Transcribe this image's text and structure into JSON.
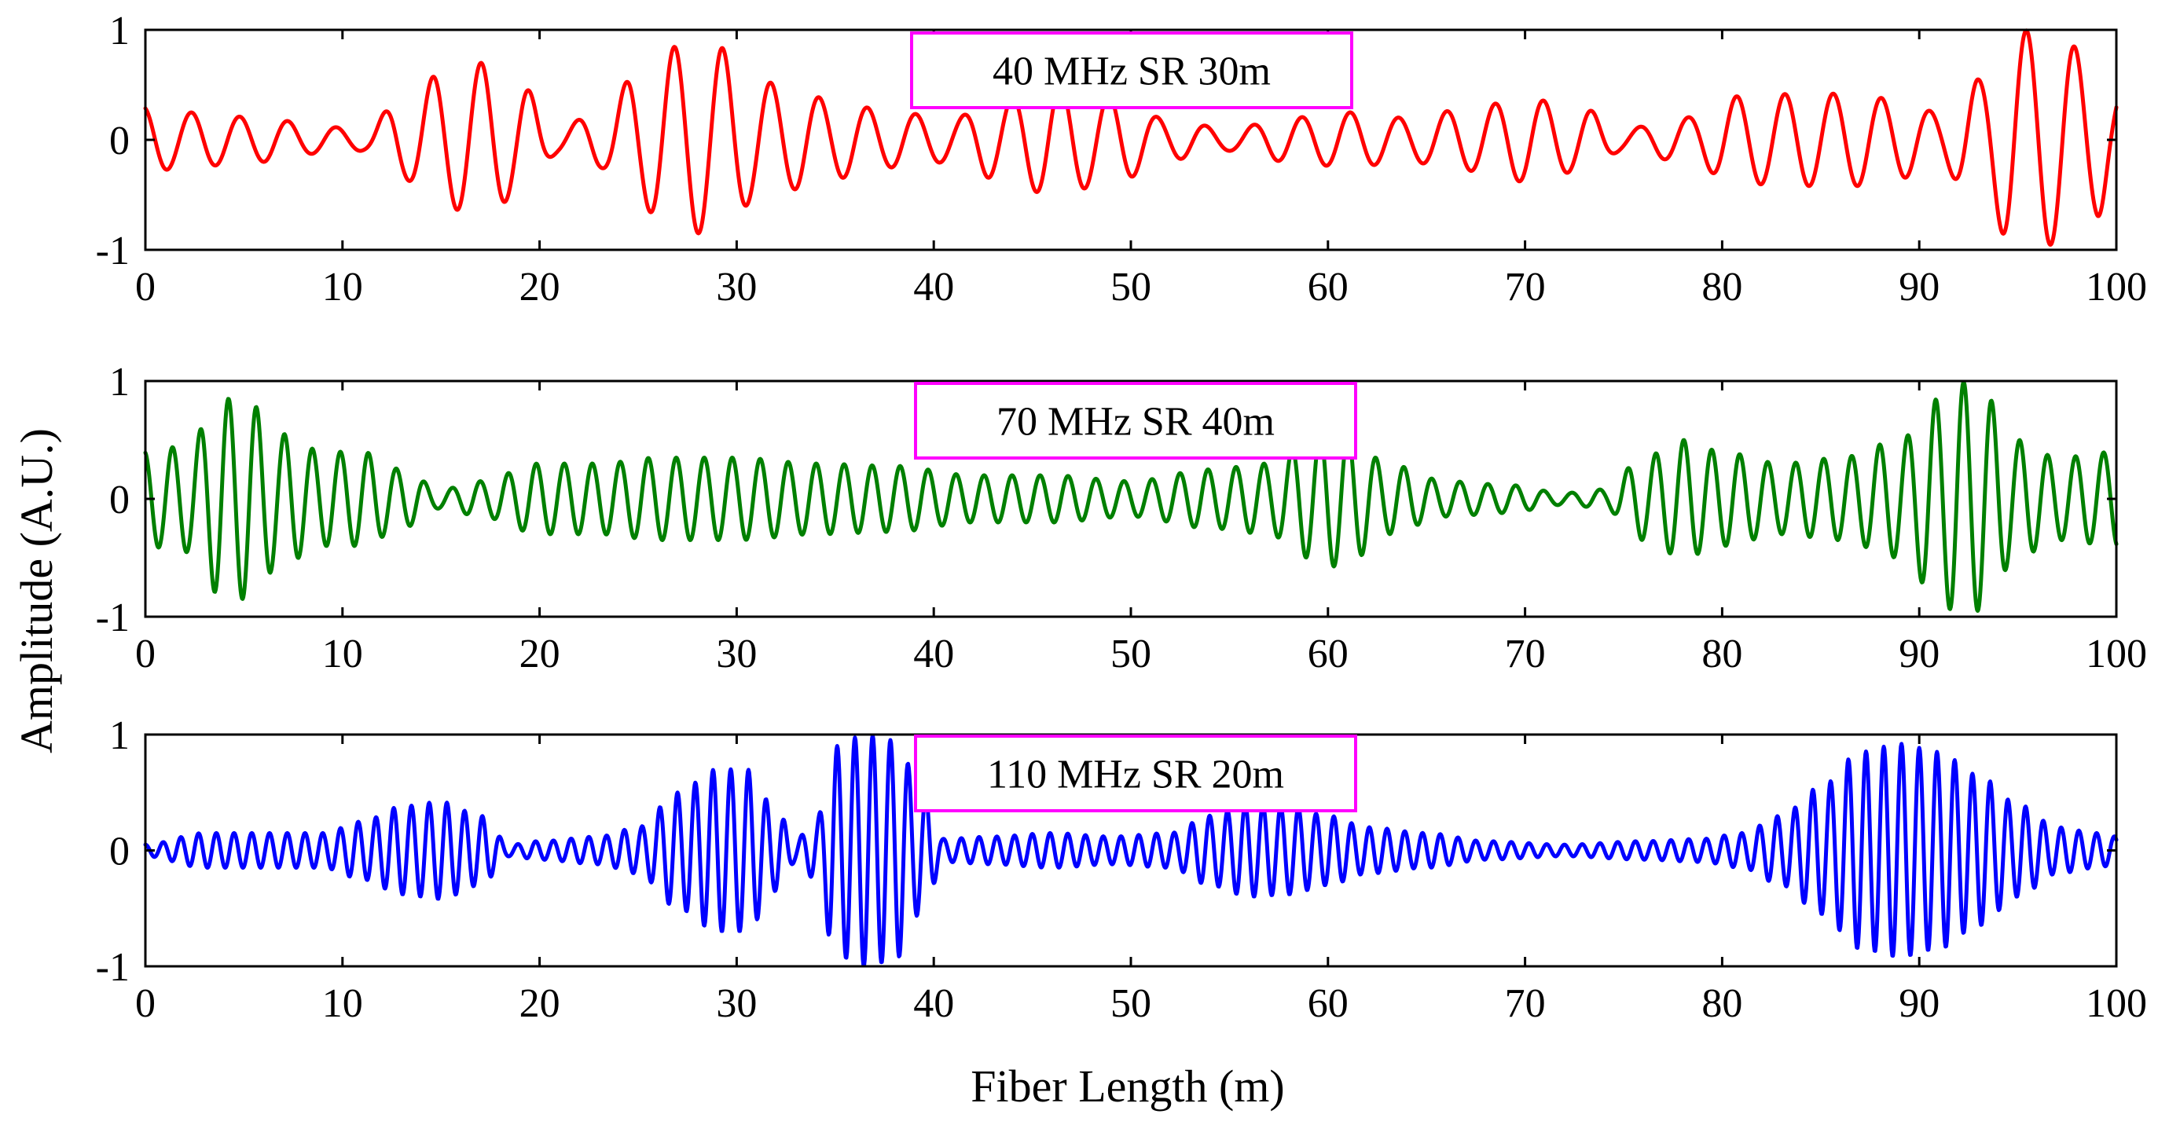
{
  "chart_data": [
    {
      "type": "line",
      "annotation": "40 MHz SR 30m",
      "color": "#ff0000",
      "xlim": [
        0,
        100
      ],
      "ylim": [
        -1,
        1
      ],
      "xticks": [
        0,
        10,
        20,
        30,
        40,
        50,
        60,
        70,
        80,
        90,
        100
      ],
      "yticks": [
        -1,
        0,
        1
      ],
      "series": [
        {
          "name": "40 MHz SR 30m",
          "period": 2.45,
          "phase": 0.3,
          "envelope": [
            [
              0,
              0.3
            ],
            [
              2,
              0.25
            ],
            [
              6,
              0.2
            ],
            [
              9,
              0.12
            ],
            [
              11,
              0.1
            ],
            [
              13,
              0.35
            ],
            [
              15,
              0.6
            ],
            [
              17,
              0.7
            ],
            [
              19,
              0.5
            ],
            [
              21,
              0.12
            ],
            [
              23,
              0.25
            ],
            [
              25,
              0.6
            ],
            [
              27,
              0.85
            ],
            [
              29,
              0.85
            ],
            [
              31,
              0.55
            ],
            [
              33,
              0.45
            ],
            [
              35,
              0.35
            ],
            [
              38,
              0.25
            ],
            [
              41,
              0.2
            ],
            [
              43,
              0.35
            ],
            [
              46,
              0.5
            ],
            [
              49,
              0.4
            ],
            [
              52,
              0.18
            ],
            [
              55,
              0.1
            ],
            [
              58,
              0.2
            ],
            [
              61,
              0.25
            ],
            [
              64,
              0.2
            ],
            [
              67,
              0.28
            ],
            [
              70,
              0.38
            ],
            [
              73,
              0.28
            ],
            [
              75,
              0.1
            ],
            [
              78,
              0.2
            ],
            [
              81,
              0.4
            ],
            [
              84,
              0.42
            ],
            [
              87,
              0.42
            ],
            [
              89,
              0.35
            ],
            [
              91,
              0.25
            ],
            [
              93,
              0.55
            ],
            [
              95,
              1.0
            ],
            [
              97,
              0.95
            ],
            [
              99,
              0.7
            ],
            [
              100,
              0.45
            ]
          ]
        }
      ]
    },
    {
      "type": "line",
      "annotation": "70 MHz SR 40m",
      "color": "#008000",
      "xlim": [
        0,
        100
      ],
      "ylim": [
        -1,
        1
      ],
      "xticks": [
        0,
        10,
        20,
        30,
        40,
        50,
        60,
        70,
        80,
        90,
        100
      ],
      "yticks": [
        -1,
        0,
        1
      ],
      "series": [
        {
          "name": "70 MHz SR 40m",
          "period": 1.42,
          "phase": 0.2,
          "envelope": [
            [
              0,
              0.4
            ],
            [
              2,
              0.45
            ],
            [
              4,
              0.85
            ],
            [
              5,
              0.85
            ],
            [
              7,
              0.55
            ],
            [
              9,
              0.4
            ],
            [
              11,
              0.4
            ],
            [
              13,
              0.25
            ],
            [
              15,
              0.08
            ],
            [
              17,
              0.15
            ],
            [
              20,
              0.3
            ],
            [
              23,
              0.3
            ],
            [
              26,
              0.35
            ],
            [
              30,
              0.35
            ],
            [
              34,
              0.3
            ],
            [
              38,
              0.28
            ],
            [
              42,
              0.2
            ],
            [
              46,
              0.2
            ],
            [
              50,
              0.15
            ],
            [
              54,
              0.25
            ],
            [
              57,
              0.3
            ],
            [
              59,
              0.5
            ],
            [
              60,
              0.58
            ],
            [
              61,
              0.55
            ],
            [
              63,
              0.3
            ],
            [
              66,
              0.15
            ],
            [
              69,
              0.12
            ],
            [
              72,
              0.05
            ],
            [
              74,
              0.08
            ],
            [
              76,
              0.35
            ],
            [
              78,
              0.5
            ],
            [
              80,
              0.4
            ],
            [
              83,
              0.3
            ],
            [
              86,
              0.35
            ],
            [
              89,
              0.5
            ],
            [
              91,
              0.85
            ],
            [
              92,
              1.0
            ],
            [
              93,
              0.95
            ],
            [
              95,
              0.5
            ],
            [
              97,
              0.35
            ],
            [
              100,
              0.4
            ]
          ]
        }
      ]
    },
    {
      "type": "line",
      "annotation": "110 MHz SR 20m",
      "color": "#0000ff",
      "xlim": [
        0,
        100
      ],
      "ylim": [
        -1,
        1
      ],
      "xticks": [
        0,
        10,
        20,
        30,
        40,
        50,
        60,
        70,
        80,
        90,
        100
      ],
      "yticks": [
        -1,
        0,
        1
      ],
      "series": [
        {
          "name": "110 MHz SR 20m",
          "period": 0.9,
          "phase": 0.0,
          "envelope": [
            [
              0,
              0.05
            ],
            [
              3,
              0.15
            ],
            [
              6,
              0.15
            ],
            [
              9,
              0.15
            ],
            [
              11,
              0.25
            ],
            [
              13,
              0.38
            ],
            [
              15,
              0.42
            ],
            [
              17,
              0.3
            ],
            [
              18.5,
              0.05
            ],
            [
              20,
              0.08
            ],
            [
              23,
              0.12
            ],
            [
              25,
              0.2
            ],
            [
              27,
              0.5
            ],
            [
              29,
              0.7
            ],
            [
              30.5,
              0.7
            ],
            [
              32,
              0.35
            ],
            [
              33,
              0.1
            ],
            [
              34,
              0.25
            ],
            [
              35,
              0.9
            ],
            [
              36.5,
              1.0
            ],
            [
              38,
              0.95
            ],
            [
              39.5,
              0.5
            ],
            [
              40.5,
              0.1
            ],
            [
              43,
              0.12
            ],
            [
              46,
              0.15
            ],
            [
              49,
              0.12
            ],
            [
              52,
              0.15
            ],
            [
              54,
              0.3
            ],
            [
              56,
              0.4
            ],
            [
              58,
              0.38
            ],
            [
              60,
              0.3
            ],
            [
              62,
              0.2
            ],
            [
              65,
              0.15
            ],
            [
              68,
              0.08
            ],
            [
              72,
              0.05
            ],
            [
              76,
              0.08
            ],
            [
              79,
              0.1
            ],
            [
              81,
              0.15
            ],
            [
              83,
              0.3
            ],
            [
              85,
              0.55
            ],
            [
              87,
              0.85
            ],
            [
              89,
              0.92
            ],
            [
              91,
              0.85
            ],
            [
              93,
              0.65
            ],
            [
              95,
              0.4
            ],
            [
              97,
              0.2
            ],
            [
              99,
              0.15
            ],
            [
              100,
              0.12
            ]
          ]
        }
      ]
    }
  ],
  "ylabel": "Amplitude (A.U.)",
  "xlabel": "Fiber Length (m)"
}
